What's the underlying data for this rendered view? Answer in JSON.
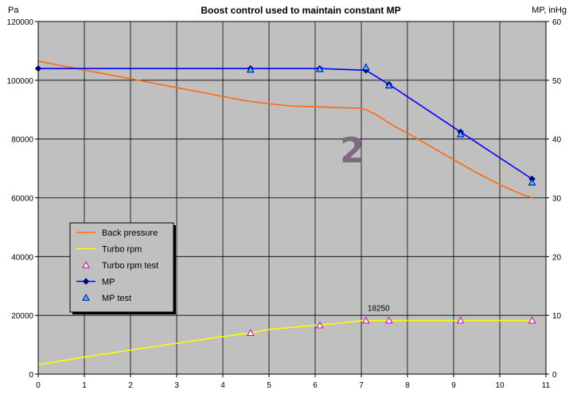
{
  "chart_data": {
    "type": "line",
    "title": "Boost control used to maintain constant MP",
    "y_left_unit": "Pa",
    "y_right_unit": "MP, inHg",
    "xlim": [
      0,
      11
    ],
    "ylim_left": [
      0,
      120000
    ],
    "ylim_right": [
      0,
      60
    ],
    "x_ticks": [
      "0",
      "1",
      "2",
      "3",
      "4",
      "5",
      "6",
      "7",
      "8",
      "9",
      "10",
      "11"
    ],
    "y_left_ticks": [
      "0",
      "20000",
      "40000",
      "60000",
      "80000",
      "100000",
      "120000"
    ],
    "y_right_ticks": [
      "0",
      "10",
      "20",
      "30",
      "40",
      "50",
      "60"
    ],
    "grid": true,
    "background": "#c0c0c0",
    "legend_position": "left-middle",
    "series": [
      {
        "name": "Back pressure",
        "axis": "left",
        "style": "line",
        "color": "#ff6a10",
        "x": [
          0,
          0.5,
          1,
          1.5,
          2,
          2.5,
          3,
          3.5,
          4,
          4.5,
          5,
          5.5,
          6,
          6.5,
          7,
          7.1,
          7.3,
          7.5,
          7.7,
          8,
          8.5,
          9,
          9.5,
          10,
          10.5,
          10.7
        ],
        "y": [
          106500,
          105000,
          103500,
          102000,
          100500,
          99000,
          97500,
          96000,
          94500,
          93000,
          92000,
          91200,
          91000,
          90700,
          90500,
          90000,
          88500,
          86500,
          84500,
          82000,
          77500,
          73000,
          68500,
          64500,
          61000,
          60000
        ]
      },
      {
        "name": "Turbo rpm",
        "axis": "left",
        "style": "line",
        "color": "#ffff00",
        "x": [
          0,
          1,
          2,
          3,
          4,
          4.6,
          5,
          6,
          6.5,
          7,
          7.1,
          7.6,
          8,
          9,
          9.2,
          10,
          10.7
        ],
        "y": [
          3200,
          5800,
          8200,
          10500,
          12800,
          14000,
          15200,
          16600,
          17300,
          18200,
          18250,
          18250,
          18250,
          18250,
          18250,
          18250,
          18250
        ]
      },
      {
        "name": "Turbo rpm test",
        "axis": "left",
        "style": "markers",
        "marker": "triangle-open",
        "color": "#ffffff",
        "stroke": "#c000c0",
        "x": [
          4.6,
          6.1,
          7.1,
          7.6,
          9.15,
          10.7
        ],
        "y": [
          14000,
          16600,
          18250,
          18250,
          18250,
          18250
        ]
      },
      {
        "name": "MP",
        "axis": "right",
        "style": "line-markers",
        "marker": "diamond",
        "color": "#0000ff",
        "marker_color": "#000080",
        "x": [
          0,
          4.6,
          6.1,
          7.1,
          7.6,
          9.15,
          10.7
        ],
        "y": [
          52,
          52,
          52,
          51.7,
          49.3,
          41.2,
          33.2
        ]
      },
      {
        "name": "MP test",
        "axis": "right",
        "style": "markers",
        "marker": "triangle",
        "color": "#33ccff",
        "x": [
          4.6,
          6.1,
          7.1,
          7.6,
          9.15,
          10.7
        ],
        "y": [
          51.8,
          51.9,
          52.2,
          49.1,
          40.8,
          32.6
        ]
      }
    ],
    "annotations": [
      {
        "text": "18250",
        "x": 7.1,
        "y": 18250
      },
      {
        "text": "2",
        "x": 6.8,
        "y": 72000
      }
    ]
  }
}
